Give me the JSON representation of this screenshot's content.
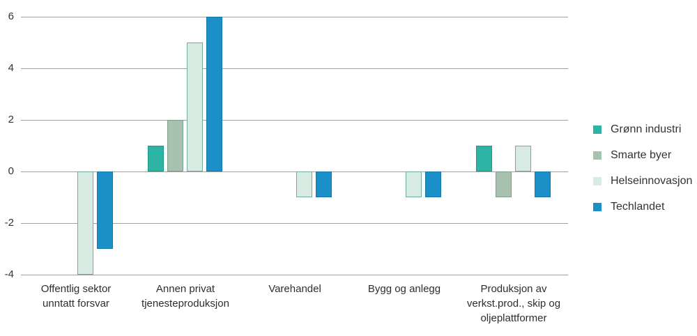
{
  "chart_data": {
    "type": "bar",
    "title": "",
    "xlabel": "",
    "ylabel": "",
    "categories": [
      "Offentlig sektor unntatt forsvar",
      "Annen privat tjenesteproduksjon",
      "Varehandel",
      "Bygg og anlegg",
      "Produksjon av verkst.prod., skip og oljeplattformer"
    ],
    "category_label_lines": [
      [
        "Offentlig sektor",
        "unntatt forsvar"
      ],
      [
        "Annen privat",
        "tjenesteproduksjon"
      ],
      [
        "Varehandel"
      ],
      [
        "Bygg og anlegg"
      ],
      [
        "Produksjon av",
        "verkst.prod., skip og",
        "oljeplattformer"
      ]
    ],
    "series": [
      {
        "name": "Grønn industri",
        "color": "#2db4a4",
        "border_color": "#1b9a8c",
        "values": [
          0,
          1,
          0,
          0,
          1
        ]
      },
      {
        "name": "Smarte byer",
        "color": "#a9c2b0",
        "border_color": "#7d9e8b",
        "values": [
          0,
          2,
          0,
          0,
          -1
        ]
      },
      {
        "name": "Helseinnovasjon",
        "color": "#d8ebe2",
        "border_color": "#6fae9f",
        "values": [
          -4,
          5,
          -1,
          -1,
          1
        ]
      },
      {
        "name": "Techlandet",
        "color": "#1b90c8",
        "border_color": "#1478a8",
        "values": [
          -3,
          6,
          -1,
          -1,
          -1
        ]
      }
    ],
    "ylim": [
      -4,
      6
    ],
    "yticks": [
      6,
      4,
      2,
      0,
      -2,
      -4
    ],
    "grid": true,
    "legend_position": "right",
    "gridline_color": "#a0a0a0",
    "text_color": "#333333",
    "background_color": "#ffffff"
  }
}
